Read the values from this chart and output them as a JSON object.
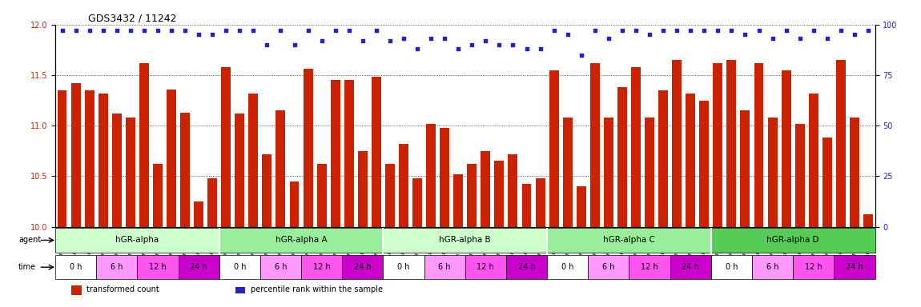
{
  "title": "GDS3432 / 11242",
  "samples": [
    "GSM154259",
    "GSM154260",
    "GSM154261",
    "GSM154274",
    "GSM154275",
    "GSM154276",
    "GSM154289",
    "GSM154290",
    "GSM154291",
    "GSM154304",
    "GSM154305",
    "GSM154306",
    "GSM154282",
    "GSM154263",
    "GSM154264",
    "GSM154277",
    "GSM154278",
    "GSM154279",
    "GSM154292",
    "GSM154293",
    "GSM154294",
    "GSM154307",
    "GSM154308",
    "GSM154309",
    "GSM154265",
    "GSM154266",
    "GSM154267",
    "GSM154280",
    "GSM154281",
    "GSM154282b",
    "GSM154295",
    "GSM154296",
    "GSM154297",
    "GSM154310",
    "GSM154311",
    "GSM154312",
    "GSM154268",
    "GSM154269",
    "GSM154270",
    "GSM154283",
    "GSM154284",
    "GSM154285",
    "GSM154298",
    "GSM154299",
    "GSM154300",
    "GSM154313",
    "GSM154314",
    "GSM154315",
    "GSM154271",
    "GSM154272",
    "GSM154273",
    "GSM154286",
    "GSM154287",
    "GSM154288",
    "GSM154301",
    "GSM154302",
    "GSM154303",
    "GSM154316",
    "GSM154317",
    "GSM154318"
  ],
  "bar_values": [
    11.35,
    11.42,
    11.35,
    11.32,
    11.12,
    11.08,
    11.62,
    10.62,
    11.36,
    11.13,
    10.25,
    10.48,
    11.58,
    11.12,
    11.32,
    10.72,
    11.15,
    10.45,
    11.56,
    10.62,
    11.45,
    11.45,
    10.75,
    11.48,
    10.62,
    10.82,
    10.48,
    11.02,
    10.98,
    10.52,
    10.62,
    10.75,
    10.65,
    10.72,
    10.42,
    10.48,
    11.55,
    11.08,
    10.4,
    11.62,
    11.08,
    11.38,
    11.58,
    11.08,
    11.35,
    11.65,
    11.32,
    11.25,
    11.62,
    11.65,
    11.15,
    11.62,
    11.08,
    11.55,
    11.02,
    11.32,
    10.88,
    11.65,
    11.08,
    10.12
  ],
  "dot_values": [
    97,
    97,
    97,
    97,
    97,
    97,
    97,
    97,
    97,
    97,
    95,
    95,
    97,
    97,
    97,
    90,
    97,
    90,
    97,
    92,
    97,
    97,
    92,
    97,
    92,
    93,
    88,
    93,
    93,
    88,
    90,
    92,
    90,
    90,
    88,
    88,
    97,
    95,
    85,
    97,
    93,
    97,
    97,
    95,
    97,
    97,
    97,
    97,
    97,
    97,
    95,
    97,
    93,
    97,
    93,
    97,
    93,
    97,
    95,
    97
  ],
  "ylim_left": [
    10.0,
    12.0
  ],
  "ylim_right": [
    0,
    100
  ],
  "yticks_left": [
    10.0,
    10.5,
    11.0,
    11.5,
    12.0
  ],
  "yticks_right": [
    0,
    25,
    50,
    75,
    100
  ],
  "bar_color": "#cc2200",
  "dot_color": "#2222cc",
  "agent_groups": [
    {
      "label": "hGR-alpha",
      "start": 0,
      "end": 12,
      "color": "#ccffcc"
    },
    {
      "label": "hGR-alpha A",
      "start": 12,
      "end": 24,
      "color": "#aaffaa"
    },
    {
      "label": "hGR-alpha B",
      "start": 24,
      "end": 36,
      "color": "#ccffcc"
    },
    {
      "label": "hGR-alpha C",
      "start": 36,
      "end": 48,
      "color": "#aaffaa"
    },
    {
      "label": "hGR-alpha D",
      "start": 48,
      "end": 60,
      "color": "#66dd66"
    }
  ],
  "time_groups": [
    {
      "label": "0 h",
      "color": "#ffffff"
    },
    {
      "label": "6 h",
      "color": "#ff99ff"
    },
    {
      "label": "12 h",
      "color": "#ff55ff"
    },
    {
      "label": "24 h",
      "color": "#dd00dd"
    }
  ],
  "legend_bar_label": "transformed count",
  "legend_dot_label": "percentile rank within the sample"
}
